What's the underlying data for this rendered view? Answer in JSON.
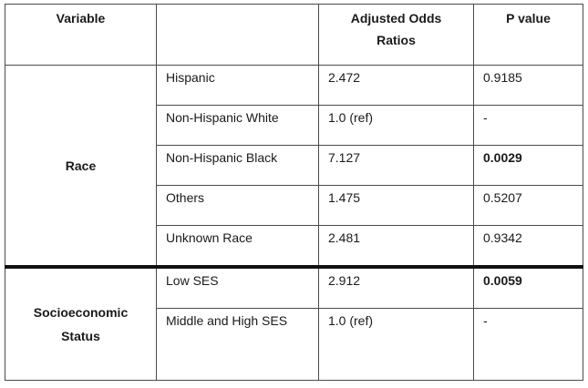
{
  "headers": {
    "variable": "Variable",
    "subgroup": "",
    "aor_line1": "Adjusted Odds",
    "aor_line2": "Ratios",
    "pvalue": "P value"
  },
  "groups": [
    {
      "name_lines": [
        "Race"
      ],
      "rows": [
        {
          "label": "Hispanic",
          "aor": "2.472",
          "p": "0.9185",
          "p_bold": false
        },
        {
          "label": "Non-Hispanic White",
          "aor": "1.0 (ref)",
          "p": "-",
          "p_bold": false
        },
        {
          "label": "Non-Hispanic Black",
          "aor": "7.127",
          "p": "0.0029",
          "p_bold": true
        },
        {
          "label": "Others",
          "aor": "1.475",
          "p": "0.5207",
          "p_bold": false
        },
        {
          "label": "Unknown Race",
          "aor": "2.481",
          "p": "0.9342",
          "p_bold": false
        }
      ]
    },
    {
      "name_lines": [
        "Socioeconomic",
        "Status"
      ],
      "rows": [
        {
          "label": "Low SES",
          "aor": "2.912",
          "p": "0.0059",
          "p_bold": true
        },
        {
          "label": "Middle and High SES",
          "aor": "1.0 (ref)",
          "p": "-",
          "p_bold": false
        }
      ]
    }
  ]
}
